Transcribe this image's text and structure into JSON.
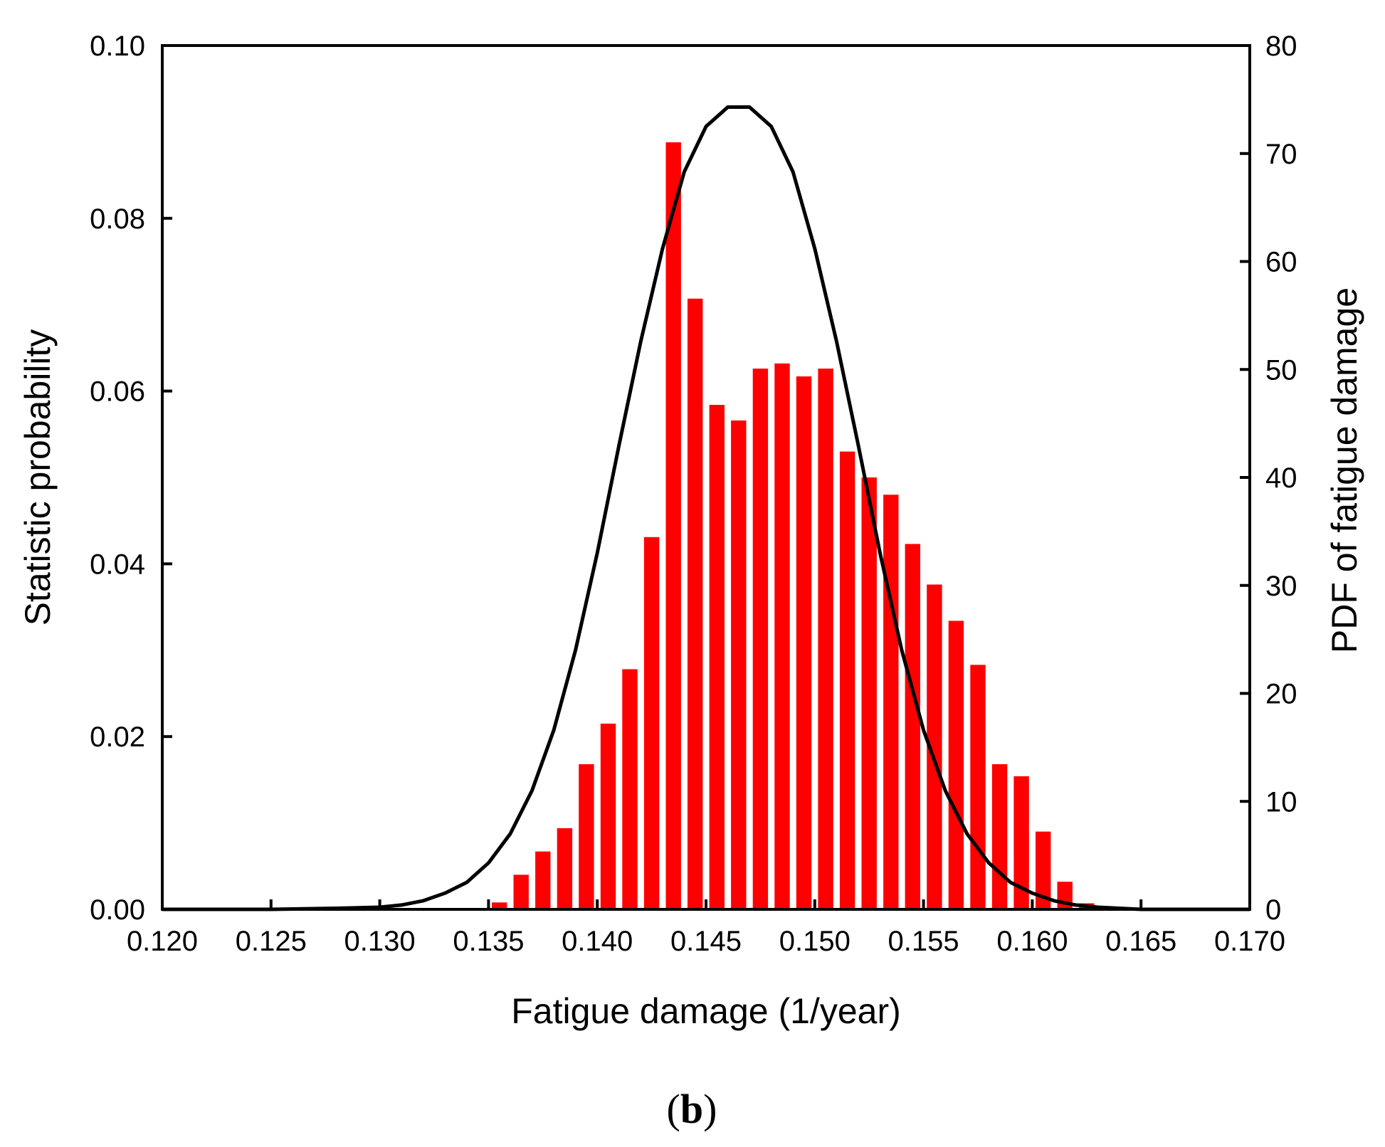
{
  "panel_label": "(b)",
  "chart_data": {
    "type": "bar",
    "xlabel": "Fatigue damage (1/year)",
    "ylabel": "Statistic probability",
    "y2label": "PDF of fatigue damage",
    "xlim": [
      0.12,
      0.17
    ],
    "ylim": [
      0,
      0.1
    ],
    "y2lim": [
      0,
      80
    ],
    "xticks": [
      "0.120",
      "0.125",
      "0.130",
      "0.135",
      "0.140",
      "0.145",
      "0.150",
      "0.155",
      "0.160",
      "0.165",
      "0.170"
    ],
    "yticks": [
      "0.00",
      "0.02",
      "0.04",
      "0.06",
      "0.08",
      "0.10"
    ],
    "y2ticks": [
      "0",
      "10",
      "20",
      "30",
      "40",
      "50",
      "60",
      "70",
      "80"
    ],
    "grid": false,
    "bar_color": "#ff0000",
    "line_color": "#000000",
    "histogram": {
      "x": [
        0.1355,
        0.1365,
        0.1375,
        0.1385,
        0.1395,
        0.1405,
        0.1415,
        0.1425,
        0.1435,
        0.1445,
        0.1455,
        0.1465,
        0.1475,
        0.1485,
        0.1495,
        0.1505,
        0.1515,
        0.1525,
        0.1535,
        0.1545,
        0.1555,
        0.1565,
        0.1575,
        0.1585,
        0.1595,
        0.1605,
        0.1615,
        0.1625,
        0.1635
      ],
      "values": [
        0.0008,
        0.004,
        0.0067,
        0.0094,
        0.0168,
        0.0215,
        0.0278,
        0.0431,
        0.0888,
        0.0707,
        0.0584,
        0.0566,
        0.0626,
        0.0632,
        0.0617,
        0.0626,
        0.053,
        0.05,
        0.048,
        0.0423,
        0.0376,
        0.0334,
        0.0283,
        0.0168,
        0.0154,
        0.009,
        0.0032,
        0.0007,
        0.0002
      ]
    },
    "pdf": {
      "x": [
        0.12,
        0.125,
        0.128,
        0.13,
        0.131,
        0.132,
        0.133,
        0.134,
        0.135,
        0.136,
        0.137,
        0.138,
        0.139,
        0.14,
        0.141,
        0.142,
        0.143,
        0.144,
        0.145,
        0.146,
        0.147,
        0.148,
        0.149,
        0.15,
        0.151,
        0.152,
        0.153,
        0.154,
        0.155,
        0.156,
        0.157,
        0.158,
        0.159,
        0.16,
        0.161,
        0.162,
        0.163,
        0.164,
        0.165,
        0.166,
        0.167,
        0.168,
        0.17
      ],
      "values": [
        0,
        0,
        0.1,
        0.2,
        0.4,
        0.8,
        1.5,
        2.5,
        4.3,
        7.0,
        11.0,
        16.6,
        24.0,
        33.0,
        43.0,
        52.6,
        61.2,
        68.3,
        72.5,
        74.3,
        74.3,
        72.5,
        68.3,
        61.2,
        52.6,
        43.0,
        33.0,
        24.0,
        16.6,
        11.0,
        7.0,
        4.3,
        2.5,
        1.5,
        0.8,
        0.4,
        0.2,
        0.1,
        0,
        0,
        0,
        0,
        0
      ]
    }
  }
}
